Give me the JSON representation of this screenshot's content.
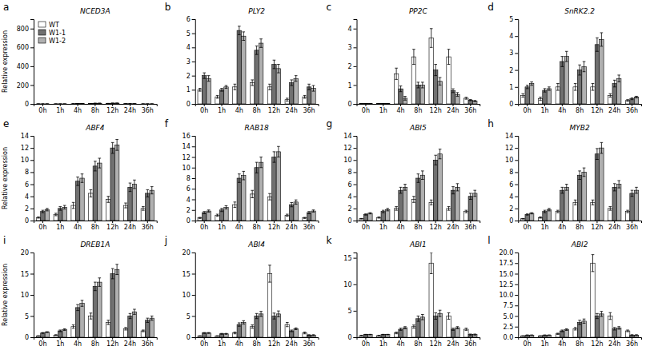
{
  "chart_data": [
    {
      "type": "bar",
      "title": "NCED3A",
      "annotations": [
        "a"
      ],
      "ylabel": "Relative expression",
      "legend": "upper left",
      "categories": [
        "0h",
        "1h",
        "4h",
        "8h",
        "12h",
        "24h",
        "36h"
      ],
      "ylim": [
        0,
        900
      ],
      "yticks": [
        0,
        200,
        400,
        600,
        800
      ],
      "series": [
        {
          "name": "WT",
          "color": "#ffffff",
          "values": [
            0.05,
            0.05,
            1.5,
            3.5,
            5.0,
            2.5,
            0.1
          ],
          "errors": [
            0.01,
            0.01,
            0.3,
            0.4,
            0.5,
            0.4,
            0.02
          ]
        },
        {
          "name": "W1-1",
          "color": "#707070",
          "values": [
            0.05,
            0.05,
            4.0,
            6.5,
            7.5,
            2.2,
            0.1
          ],
          "errors": [
            0.01,
            0.01,
            0.4,
            0.5,
            0.6,
            0.3,
            0.02
          ]
        },
        {
          "name": "W1-2",
          "color": "#b0b0b0",
          "values": [
            0.05,
            0.05,
            4.2,
            6.8,
            7.8,
            2.0,
            0.12
          ],
          "errors": [
            0.01,
            0.01,
            0.5,
            0.6,
            0.7,
            0.3,
            0.02
          ]
        }
      ]
    },
    {
      "type": "bar",
      "title": "PLY2",
      "annotations": [
        "b"
      ],
      "categories": [
        "0h",
        "1h",
        "4h",
        "8h",
        "12h",
        "24h",
        "36h"
      ],
      "ylim": [
        0,
        6.0
      ],
      "yticks": [
        0,
        1,
        2,
        3,
        4,
        5,
        6
      ],
      "series": [
        {
          "name": "WT",
          "color": "#ffffff",
          "values": [
            1.0,
            0.5,
            1.2,
            1.5,
            1.2,
            0.3,
            0.5
          ],
          "errors": [
            0.1,
            0.1,
            0.2,
            0.2,
            0.2,
            0.1,
            0.1
          ]
        },
        {
          "name": "W1-1",
          "color": "#707070",
          "values": [
            2.0,
            1.0,
            5.2,
            3.8,
            2.8,
            1.5,
            1.2
          ],
          "errors": [
            0.2,
            0.1,
            0.3,
            0.3,
            0.3,
            0.2,
            0.2
          ]
        },
        {
          "name": "W1-2",
          "color": "#b0b0b0",
          "values": [
            1.8,
            1.2,
            4.8,
            4.3,
            2.5,
            1.8,
            1.1
          ],
          "errors": [
            0.2,
            0.1,
            0.3,
            0.3,
            0.3,
            0.2,
            0.2
          ]
        }
      ]
    },
    {
      "type": "bar",
      "title": "PP2C",
      "annotations": [
        "c"
      ],
      "categories": [
        "0h",
        "1h",
        "4h",
        "8h",
        "12h",
        "24h",
        "36h"
      ],
      "ylim": [
        0,
        4.5
      ],
      "yticks": [
        0,
        1,
        2,
        3,
        4
      ],
      "series": [
        {
          "name": "WT",
          "color": "#ffffff",
          "values": [
            0.02,
            0.02,
            1.6,
            2.5,
            3.5,
            2.5,
            0.3
          ],
          "errors": [
            0.005,
            0.005,
            0.3,
            0.4,
            0.5,
            0.4,
            0.05
          ]
        },
        {
          "name": "W1-1",
          "color": "#707070",
          "values": [
            0.02,
            0.02,
            0.8,
            1.0,
            1.8,
            0.7,
            0.2
          ],
          "errors": [
            0.005,
            0.005,
            0.15,
            0.15,
            0.3,
            0.1,
            0.03
          ]
        },
        {
          "name": "W1-2",
          "color": "#b0b0b0",
          "values": [
            0.02,
            0.02,
            0.3,
            1.0,
            1.2,
            0.5,
            0.15
          ],
          "errors": [
            0.005,
            0.005,
            0.1,
            0.15,
            0.2,
            0.1,
            0.03
          ]
        }
      ]
    },
    {
      "type": "bar",
      "title": "SnRK2.2",
      "annotations": [
        "d"
      ],
      "categories": [
        "0h",
        "1h",
        "4h",
        "8h",
        "12h",
        "24h",
        "36h"
      ],
      "ylim": [
        0,
        5
      ],
      "yticks": [
        0,
        1,
        2,
        3,
        4,
        5
      ],
      "series": [
        {
          "name": "WT",
          "color": "#ffffff",
          "values": [
            0.5,
            0.3,
            1.0,
            1.0,
            1.0,
            0.5,
            0.2
          ],
          "errors": [
            0.1,
            0.1,
            0.2,
            0.2,
            0.2,
            0.1,
            0.05
          ]
        },
        {
          "name": "W1-1",
          "color": "#707070",
          "values": [
            1.0,
            0.8,
            2.5,
            2.0,
            3.5,
            1.2,
            0.3
          ],
          "errors": [
            0.1,
            0.1,
            0.3,
            0.3,
            0.4,
            0.2,
            0.05
          ]
        },
        {
          "name": "W1-2",
          "color": "#b0b0b0",
          "values": [
            1.2,
            0.9,
            2.8,
            2.2,
            3.8,
            1.5,
            0.4
          ],
          "errors": [
            0.1,
            0.1,
            0.3,
            0.3,
            0.4,
            0.2,
            0.05
          ]
        }
      ]
    },
    {
      "type": "bar",
      "title": "ABF4",
      "annotations": [
        "e"
      ],
      "ylabel": "Relative expression",
      "categories": [
        "0h",
        "1h",
        "4h",
        "8h",
        "12h",
        "24h",
        "36h"
      ],
      "ylim": [
        0,
        14.0
      ],
      "yticks": [
        0,
        2,
        4,
        6,
        8,
        10,
        12,
        14
      ],
      "series": [
        {
          "name": "WT",
          "color": "#ffffff",
          "values": [
            0.5,
            1.0,
            2.5,
            4.5,
            3.5,
            2.5,
            2.0
          ],
          "errors": [
            0.1,
            0.2,
            0.5,
            0.6,
            0.5,
            0.4,
            0.3
          ]
        },
        {
          "name": "W1-1",
          "color": "#707070",
          "values": [
            1.5,
            2.0,
            6.5,
            9.0,
            12.0,
            5.5,
            4.5
          ],
          "errors": [
            0.2,
            0.3,
            0.7,
            0.8,
            0.9,
            0.7,
            0.6
          ]
        },
        {
          "name": "W1-2",
          "color": "#b0b0b0",
          "values": [
            1.8,
            2.2,
            7.0,
            9.5,
            12.5,
            6.0,
            5.0
          ],
          "errors": [
            0.2,
            0.3,
            0.7,
            0.8,
            0.9,
            0.7,
            0.6
          ]
        }
      ]
    },
    {
      "type": "bar",
      "title": "RAB18",
      "annotations": [
        "f"
      ],
      "categories": [
        "0h",
        "1h",
        "4h",
        "8h",
        "12h",
        "24h",
        "36h"
      ],
      "ylim": [
        0,
        16.0
      ],
      "yticks": [
        0,
        2,
        4,
        6,
        8,
        10,
        12,
        14,
        16
      ],
      "series": [
        {
          "name": "WT",
          "color": "#ffffff",
          "values": [
            0.5,
            1.0,
            3.0,
            5.0,
            4.5,
            1.0,
            0.5
          ],
          "errors": [
            0.1,
            0.2,
            0.5,
            0.7,
            0.6,
            0.2,
            0.1
          ]
        },
        {
          "name": "W1-1",
          "color": "#707070",
          "values": [
            1.5,
            2.0,
            8.0,
            10.0,
            12.0,
            3.0,
            1.5
          ],
          "errors": [
            0.2,
            0.3,
            0.8,
            1.0,
            1.0,
            0.4,
            0.2
          ]
        },
        {
          "name": "W1-2",
          "color": "#b0b0b0",
          "values": [
            1.8,
            2.5,
            8.5,
            11.0,
            13.0,
            3.5,
            1.8
          ],
          "errors": [
            0.2,
            0.3,
            0.8,
            1.0,
            1.0,
            0.4,
            0.2
          ]
        }
      ]
    },
    {
      "type": "bar",
      "title": "ABI5",
      "annotations": [
        "g"
      ],
      "categories": [
        "0h",
        "1h",
        "4h",
        "8h",
        "12h",
        "24h",
        "36h"
      ],
      "ylim": [
        0,
        14.0
      ],
      "yticks": [
        0,
        2,
        4,
        6,
        8,
        10,
        12,
        14
      ],
      "series": [
        {
          "name": "WT",
          "color": "#ffffff",
          "values": [
            0.3,
            0.5,
            2.0,
            3.5,
            3.0,
            2.0,
            1.5
          ],
          "errors": [
            0.05,
            0.1,
            0.3,
            0.5,
            0.4,
            0.3,
            0.2
          ]
        },
        {
          "name": "W1-1",
          "color": "#707070",
          "values": [
            1.0,
            1.5,
            5.0,
            7.0,
            10.0,
            5.0,
            4.0
          ],
          "errors": [
            0.1,
            0.2,
            0.5,
            0.7,
            0.8,
            0.6,
            0.5
          ]
        },
        {
          "name": "W1-2",
          "color": "#b0b0b0",
          "values": [
            1.2,
            1.8,
            5.5,
            7.5,
            11.0,
            5.5,
            4.5
          ],
          "errors": [
            0.1,
            0.2,
            0.5,
            0.7,
            0.8,
            0.6,
            0.5
          ]
        }
      ]
    },
    {
      "type": "bar",
      "title": "MYB2",
      "annotations": [
        "h"
      ],
      "categories": [
        "0h",
        "1h",
        "4h",
        "8h",
        "12h",
        "24h",
        "36h"
      ],
      "ylim": [
        0,
        14.0
      ],
      "yticks": [
        0,
        2,
        4,
        6,
        8,
        10,
        12,
        14
      ],
      "series": [
        {
          "name": "WT",
          "color": "#ffffff",
          "values": [
            0.3,
            0.5,
            1.5,
            3.0,
            3.0,
            2.0,
            1.5
          ],
          "errors": [
            0.05,
            0.1,
            0.2,
            0.4,
            0.4,
            0.3,
            0.2
          ]
        },
        {
          "name": "W1-1",
          "color": "#707070",
          "values": [
            1.0,
            1.5,
            5.0,
            7.5,
            11.0,
            5.5,
            4.5
          ],
          "errors": [
            0.1,
            0.2,
            0.5,
            0.7,
            0.9,
            0.6,
            0.5
          ]
        },
        {
          "name": "W1-2",
          "color": "#b0b0b0",
          "values": [
            1.2,
            1.8,
            5.5,
            8.0,
            12.0,
            6.0,
            5.0
          ],
          "errors": [
            0.1,
            0.2,
            0.5,
            0.7,
            0.9,
            0.6,
            0.5
          ]
        }
      ]
    },
    {
      "type": "bar",
      "title": "DREB1A",
      "annotations": [
        "i"
      ],
      "ylabel": "Relative expression",
      "categories": [
        "0h",
        "1h",
        "4h",
        "8h",
        "12h",
        "24h",
        "36h"
      ],
      "ylim": [
        0,
        20.0
      ],
      "yticks": [
        0,
        5,
        10,
        15,
        20
      ],
      "series": [
        {
          "name": "WT",
          "color": "#ffffff",
          "values": [
            0.3,
            0.5,
            2.5,
            5.0,
            3.5,
            2.0,
            1.5
          ],
          "errors": [
            0.05,
            0.1,
            0.4,
            0.7,
            0.5,
            0.3,
            0.2
          ]
        },
        {
          "name": "W1-1",
          "color": "#707070",
          "values": [
            1.0,
            1.5,
            7.0,
            12.0,
            15.0,
            5.0,
            4.0
          ],
          "errors": [
            0.1,
            0.2,
            0.7,
            1.0,
            1.2,
            0.6,
            0.5
          ]
        },
        {
          "name": "W1-2",
          "color": "#b0b0b0",
          "values": [
            1.2,
            1.8,
            8.0,
            13.0,
            16.0,
            6.0,
            4.5
          ],
          "errors": [
            0.1,
            0.2,
            0.7,
            1.0,
            1.2,
            0.6,
            0.5
          ]
        }
      ]
    },
    {
      "type": "bar",
      "title": "ABI4",
      "annotations": [
        "j"
      ],
      "categories": [
        "0h",
        "1h",
        "4h",
        "8h",
        "12h",
        "24h",
        "36h"
      ],
      "ylim": [
        0,
        20.0
      ],
      "yticks": [
        0,
        5,
        10,
        15,
        20
      ],
      "series": [
        {
          "name": "WT",
          "color": "#ffffff",
          "values": [
            0.3,
            0.3,
            1.0,
            2.5,
            15.0,
            3.0,
            1.0
          ],
          "errors": [
            0.05,
            0.05,
            0.2,
            0.4,
            2.0,
            0.5,
            0.2
          ]
        },
        {
          "name": "W1-1",
          "color": "#707070",
          "values": [
            1.0,
            0.8,
            3.0,
            5.0,
            5.0,
            1.5,
            0.5
          ],
          "errors": [
            0.1,
            0.1,
            0.4,
            0.6,
            0.7,
            0.2,
            0.1
          ]
        },
        {
          "name": "W1-2",
          "color": "#b0b0b0",
          "values": [
            1.0,
            0.8,
            3.5,
            5.5,
            5.5,
            2.0,
            0.5
          ],
          "errors": [
            0.1,
            0.1,
            0.4,
            0.6,
            0.7,
            0.2,
            0.1
          ]
        }
      ]
    },
    {
      "type": "bar",
      "title": "ABI1",
      "annotations": [
        "k"
      ],
      "categories": [
        "0h",
        "1h",
        "4h",
        "8h",
        "12h",
        "24h",
        "36h"
      ],
      "ylim": [
        0,
        16.0
      ],
      "yticks": [
        0,
        5,
        10,
        15
      ],
      "series": [
        {
          "name": "WT",
          "color": "#ffffff",
          "values": [
            0.3,
            0.3,
            0.8,
            2.0,
            14.0,
            4.0,
            1.5
          ],
          "errors": [
            0.05,
            0.05,
            0.15,
            0.3,
            2.0,
            0.6,
            0.2
          ]
        },
        {
          "name": "W1-1",
          "color": "#707070",
          "values": [
            0.5,
            0.5,
            1.5,
            3.5,
            4.0,
            1.5,
            0.5
          ],
          "errors": [
            0.05,
            0.05,
            0.2,
            0.5,
            0.6,
            0.2,
            0.1
          ]
        },
        {
          "name": "W1-2",
          "color": "#b0b0b0",
          "values": [
            0.5,
            0.5,
            1.8,
            3.8,
            4.5,
            1.8,
            0.5
          ],
          "errors": [
            0.05,
            0.05,
            0.2,
            0.5,
            0.6,
            0.2,
            0.1
          ]
        }
      ]
    },
    {
      "type": "bar",
      "title": "ABI2",
      "annotations": [
        "l"
      ],
      "categories": [
        "0h",
        "1h",
        "4h",
        "8h",
        "12h",
        "24h",
        "36h"
      ],
      "ylim": [
        0,
        20.0
      ],
      "yticks": [
        {
          "value": 0,
          "label": "0.0"
        },
        2.5,
        {
          "value": 5,
          "label": "5.0"
        },
        7.5,
        {
          "value": 10,
          "label": "10.0"
        },
        12.5,
        {
          "value": 15,
          "label": "15.0"
        },
        17.5,
        {
          "value": 20,
          "label": "20.0"
        }
      ],
      "series": [
        {
          "name": "WT",
          "color": "#ffffff",
          "values": [
            0.3,
            0.3,
            0.8,
            2.0,
            17.5,
            5.0,
            1.5
          ],
          "errors": [
            0.05,
            0.05,
            0.15,
            0.3,
            2.0,
            0.8,
            0.2
          ]
        },
        {
          "name": "W1-1",
          "color": "#707070",
          "values": [
            0.5,
            0.5,
            1.5,
            3.5,
            5.0,
            2.0,
            0.5
          ],
          "errors": [
            0.05,
            0.05,
            0.2,
            0.5,
            0.6,
            0.3,
            0.1
          ]
        },
        {
          "name": "W1-2",
          "color": "#b0b0b0",
          "values": [
            0.5,
            0.5,
            1.8,
            3.8,
            5.5,
            2.2,
            0.5
          ],
          "errors": [
            0.05,
            0.05,
            0.2,
            0.5,
            0.6,
            0.3,
            0.1
          ]
        }
      ]
    }
  ]
}
